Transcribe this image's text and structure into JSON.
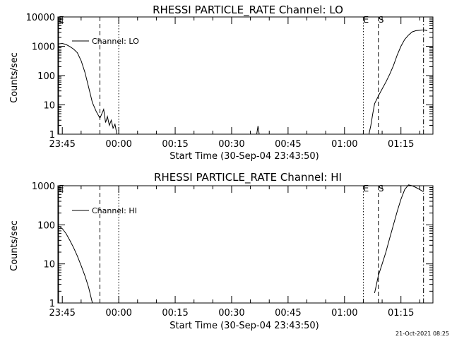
{
  "footer": {
    "date_stamp": "21-Oct-2021 08:25"
  },
  "chart_data": [
    {
      "type": "line",
      "title": "RHESSI PARTICLE_RATE Channel: LO",
      "xlabel": "Start Time (30-Sep-04 23:43:50)",
      "ylabel": "Counts/sec",
      "y_scale": "log",
      "ylim": [
        1,
        10000
      ],
      "y_ticks": [
        1,
        10,
        100,
        1000,
        10000
      ],
      "y_tick_labels": [
        "1",
        "10",
        "100",
        "1000",
        "10000"
      ],
      "xlim": [
        "23:43:50",
        "01:23:30"
      ],
      "x_ticks": [
        "23:45",
        "00:00",
        "00:15",
        "00:30",
        "00:45",
        "01:00",
        "01:15"
      ],
      "x_tick_labels": [
        "23:45",
        "00:00",
        "00:15",
        "00:30",
        "00:45",
        "01:00",
        "01:15"
      ],
      "legend": {
        "placement": "top-left",
        "entries": [
          "Channel: LO"
        ]
      },
      "series": [
        {
          "name": "Channel: LO",
          "points": [
            [
              "23:43:50",
              1200
            ],
            [
              "23:45:00",
              1250
            ],
            [
              "23:46:00",
              1150
            ],
            [
              "23:47:00",
              980
            ],
            [
              "23:48:00",
              800
            ],
            [
              "23:49:00",
              600
            ],
            [
              "23:50:00",
              320
            ],
            [
              "23:51:00",
              130
            ],
            [
              "23:52:00",
              40
            ],
            [
              "23:53:00",
              12
            ],
            [
              "23:54:00",
              6
            ],
            [
              "23:55:00",
              3.5
            ],
            [
              "23:56:00",
              7
            ],
            [
              "23:56:30",
              2.5
            ],
            [
              "23:57:00",
              4
            ],
            [
              "23:57:30",
              2
            ],
            [
              "23:58:00",
              3
            ],
            [
              "23:58:30",
              1.6
            ],
            [
              "23:59:00",
              2.2
            ],
            [
              "23:59:30",
              1
            ]
          ]
        },
        {
          "name": "",
          "points": [
            [
              "00:36:40",
              1
            ],
            [
              "00:37:00",
              1.9
            ],
            [
              "00:37:20",
              1
            ]
          ]
        },
        {
          "name": "",
          "points": [
            [
              "01:06:30",
              1
            ],
            [
              "01:07:00",
              2
            ],
            [
              "01:07:30",
              5
            ],
            [
              "01:08:00",
              11
            ],
            [
              "01:09:00",
              20
            ],
            [
              "01:10:00",
              35
            ],
            [
              "01:11:00",
              60
            ],
            [
              "01:12:00",
              110
            ],
            [
              "01:13:00",
              220
            ],
            [
              "01:14:00",
              500
            ],
            [
              "01:15:00",
              1000
            ],
            [
              "01:16:00",
              1700
            ],
            [
              "01:17:00",
              2400
            ],
            [
              "01:18:00",
              3100
            ],
            [
              "01:19:00",
              3400
            ],
            [
              "01:20:00",
              3500
            ],
            [
              "01:21:00",
              3600
            ],
            [
              "01:22:00",
              3400
            ]
          ]
        }
      ],
      "markers": [
        {
          "time": "23:44:00",
          "style": "solid",
          "label": "E"
        },
        {
          "time": "23:55:00",
          "style": "dashed",
          "label": ""
        },
        {
          "time": "00:00:00",
          "style": "dotted",
          "label": ""
        },
        {
          "time": "01:05:00",
          "style": "dotted",
          "label": "E"
        },
        {
          "time": "01:09:00",
          "style": "dashed",
          "label": "S"
        },
        {
          "time": "01:21:00",
          "style": "dashdot",
          "label": ""
        }
      ]
    },
    {
      "type": "line",
      "title": "RHESSI PARTICLE_RATE Channel: HI",
      "xlabel": "Start Time (30-Sep-04 23:43:50)",
      "ylabel": "Counts/sec",
      "y_scale": "log",
      "ylim": [
        1,
        1000
      ],
      "y_ticks": [
        1,
        10,
        100,
        1000
      ],
      "y_tick_labels": [
        "1",
        "10",
        "100",
        "1000"
      ],
      "xlim": [
        "23:43:50",
        "01:23:30"
      ],
      "x_ticks": [
        "23:45",
        "00:00",
        "00:15",
        "00:30",
        "00:45",
        "01:00",
        "01:15"
      ],
      "x_tick_labels": [
        "23:45",
        "00:00",
        "00:15",
        "00:30",
        "00:45",
        "01:00",
        "01:15"
      ],
      "legend": {
        "placement": "top-left",
        "entries": [
          "Channel: HI"
        ]
      },
      "series": [
        {
          "name": "Channel: HI",
          "points": [
            [
              "23:43:50",
              95
            ],
            [
              "23:45:00",
              80
            ],
            [
              "23:46:00",
              60
            ],
            [
              "23:47:00",
              40
            ],
            [
              "23:48:00",
              26
            ],
            [
              "23:49:00",
              16
            ],
            [
              "23:50:00",
              9
            ],
            [
              "23:51:00",
              5
            ],
            [
              "23:52:00",
              2.5
            ],
            [
              "23:53:00",
              1
            ]
          ]
        },
        {
          "name": "",
          "points": [
            [
              "01:08:00",
              1.8
            ],
            [
              "01:08:30",
              3
            ],
            [
              "01:09:00",
              5
            ],
            [
              "01:10:00",
              10
            ],
            [
              "01:11:00",
              20
            ],
            [
              "01:12:00",
              45
            ],
            [
              "01:13:00",
              100
            ],
            [
              "01:14:00",
              220
            ],
            [
              "01:15:00",
              450
            ],
            [
              "01:16:00",
              800
            ],
            [
              "01:17:00",
              1050
            ],
            [
              "01:18:00",
              1000
            ],
            [
              "01:19:00",
              900
            ],
            [
              "01:20:00",
              800
            ],
            [
              "01:21:00",
              700
            ]
          ]
        }
      ],
      "markers": [
        {
          "time": "23:44:00",
          "style": "solid",
          "label": "E"
        },
        {
          "time": "23:55:00",
          "style": "dashed",
          "label": ""
        },
        {
          "time": "00:00:00",
          "style": "dotted",
          "label": ""
        },
        {
          "time": "01:05:00",
          "style": "dotted",
          "label": "E"
        },
        {
          "time": "01:09:00",
          "style": "dashed",
          "label": "S"
        },
        {
          "time": "01:21:00",
          "style": "dashdot",
          "label": ""
        }
      ]
    }
  ]
}
